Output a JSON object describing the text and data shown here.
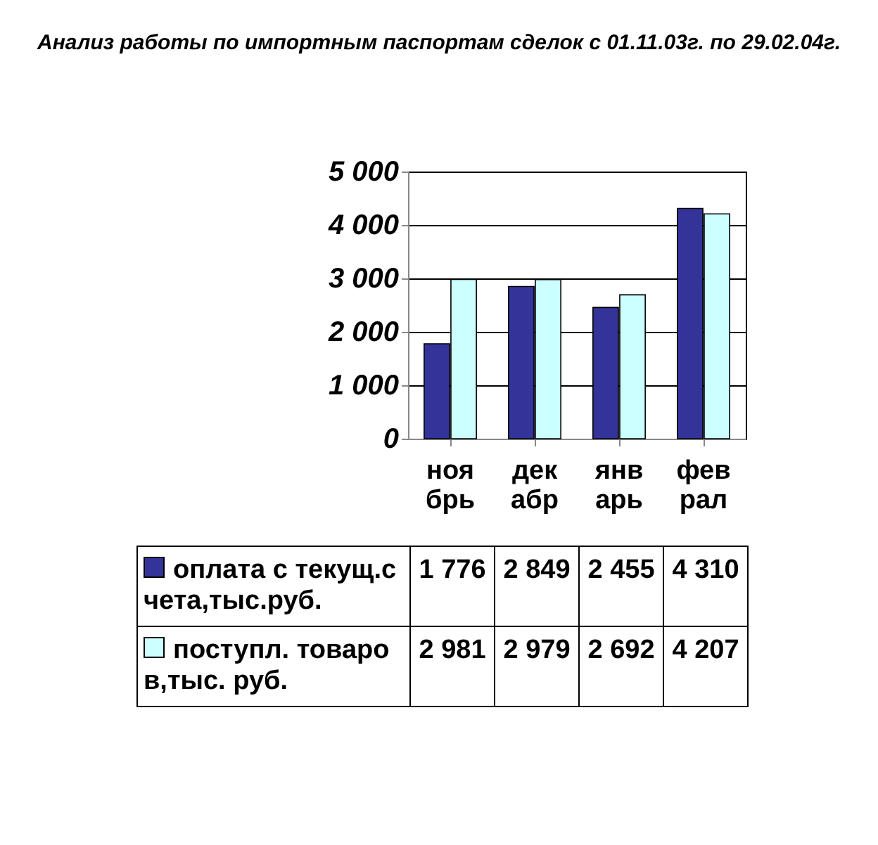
{
  "chart_data": {
    "type": "bar",
    "title": "Анализ работы по импортным паспортам сделок с 01.11.03г. по 29.02.04г.",
    "categories": [
      "ноябрь",
      "декабр",
      "январь",
      "феврал"
    ],
    "series": [
      {
        "name": "оплата с текущ.счета,тыс.руб.",
        "color": "#333399",
        "values": [
          1776,
          2849,
          2455,
          4310
        ]
      },
      {
        "name": "поступл. товаров,тыс. руб.",
        "color": "#ccffff",
        "values": [
          2981,
          2979,
          2692,
          4207
        ]
      }
    ],
    "ylim": [
      0,
      5000
    ],
    "yticks": [
      0,
      1000,
      2000,
      3000,
      4000,
      5000
    ],
    "grid": "y",
    "legend": "bottom",
    "data_labels": true
  }
}
